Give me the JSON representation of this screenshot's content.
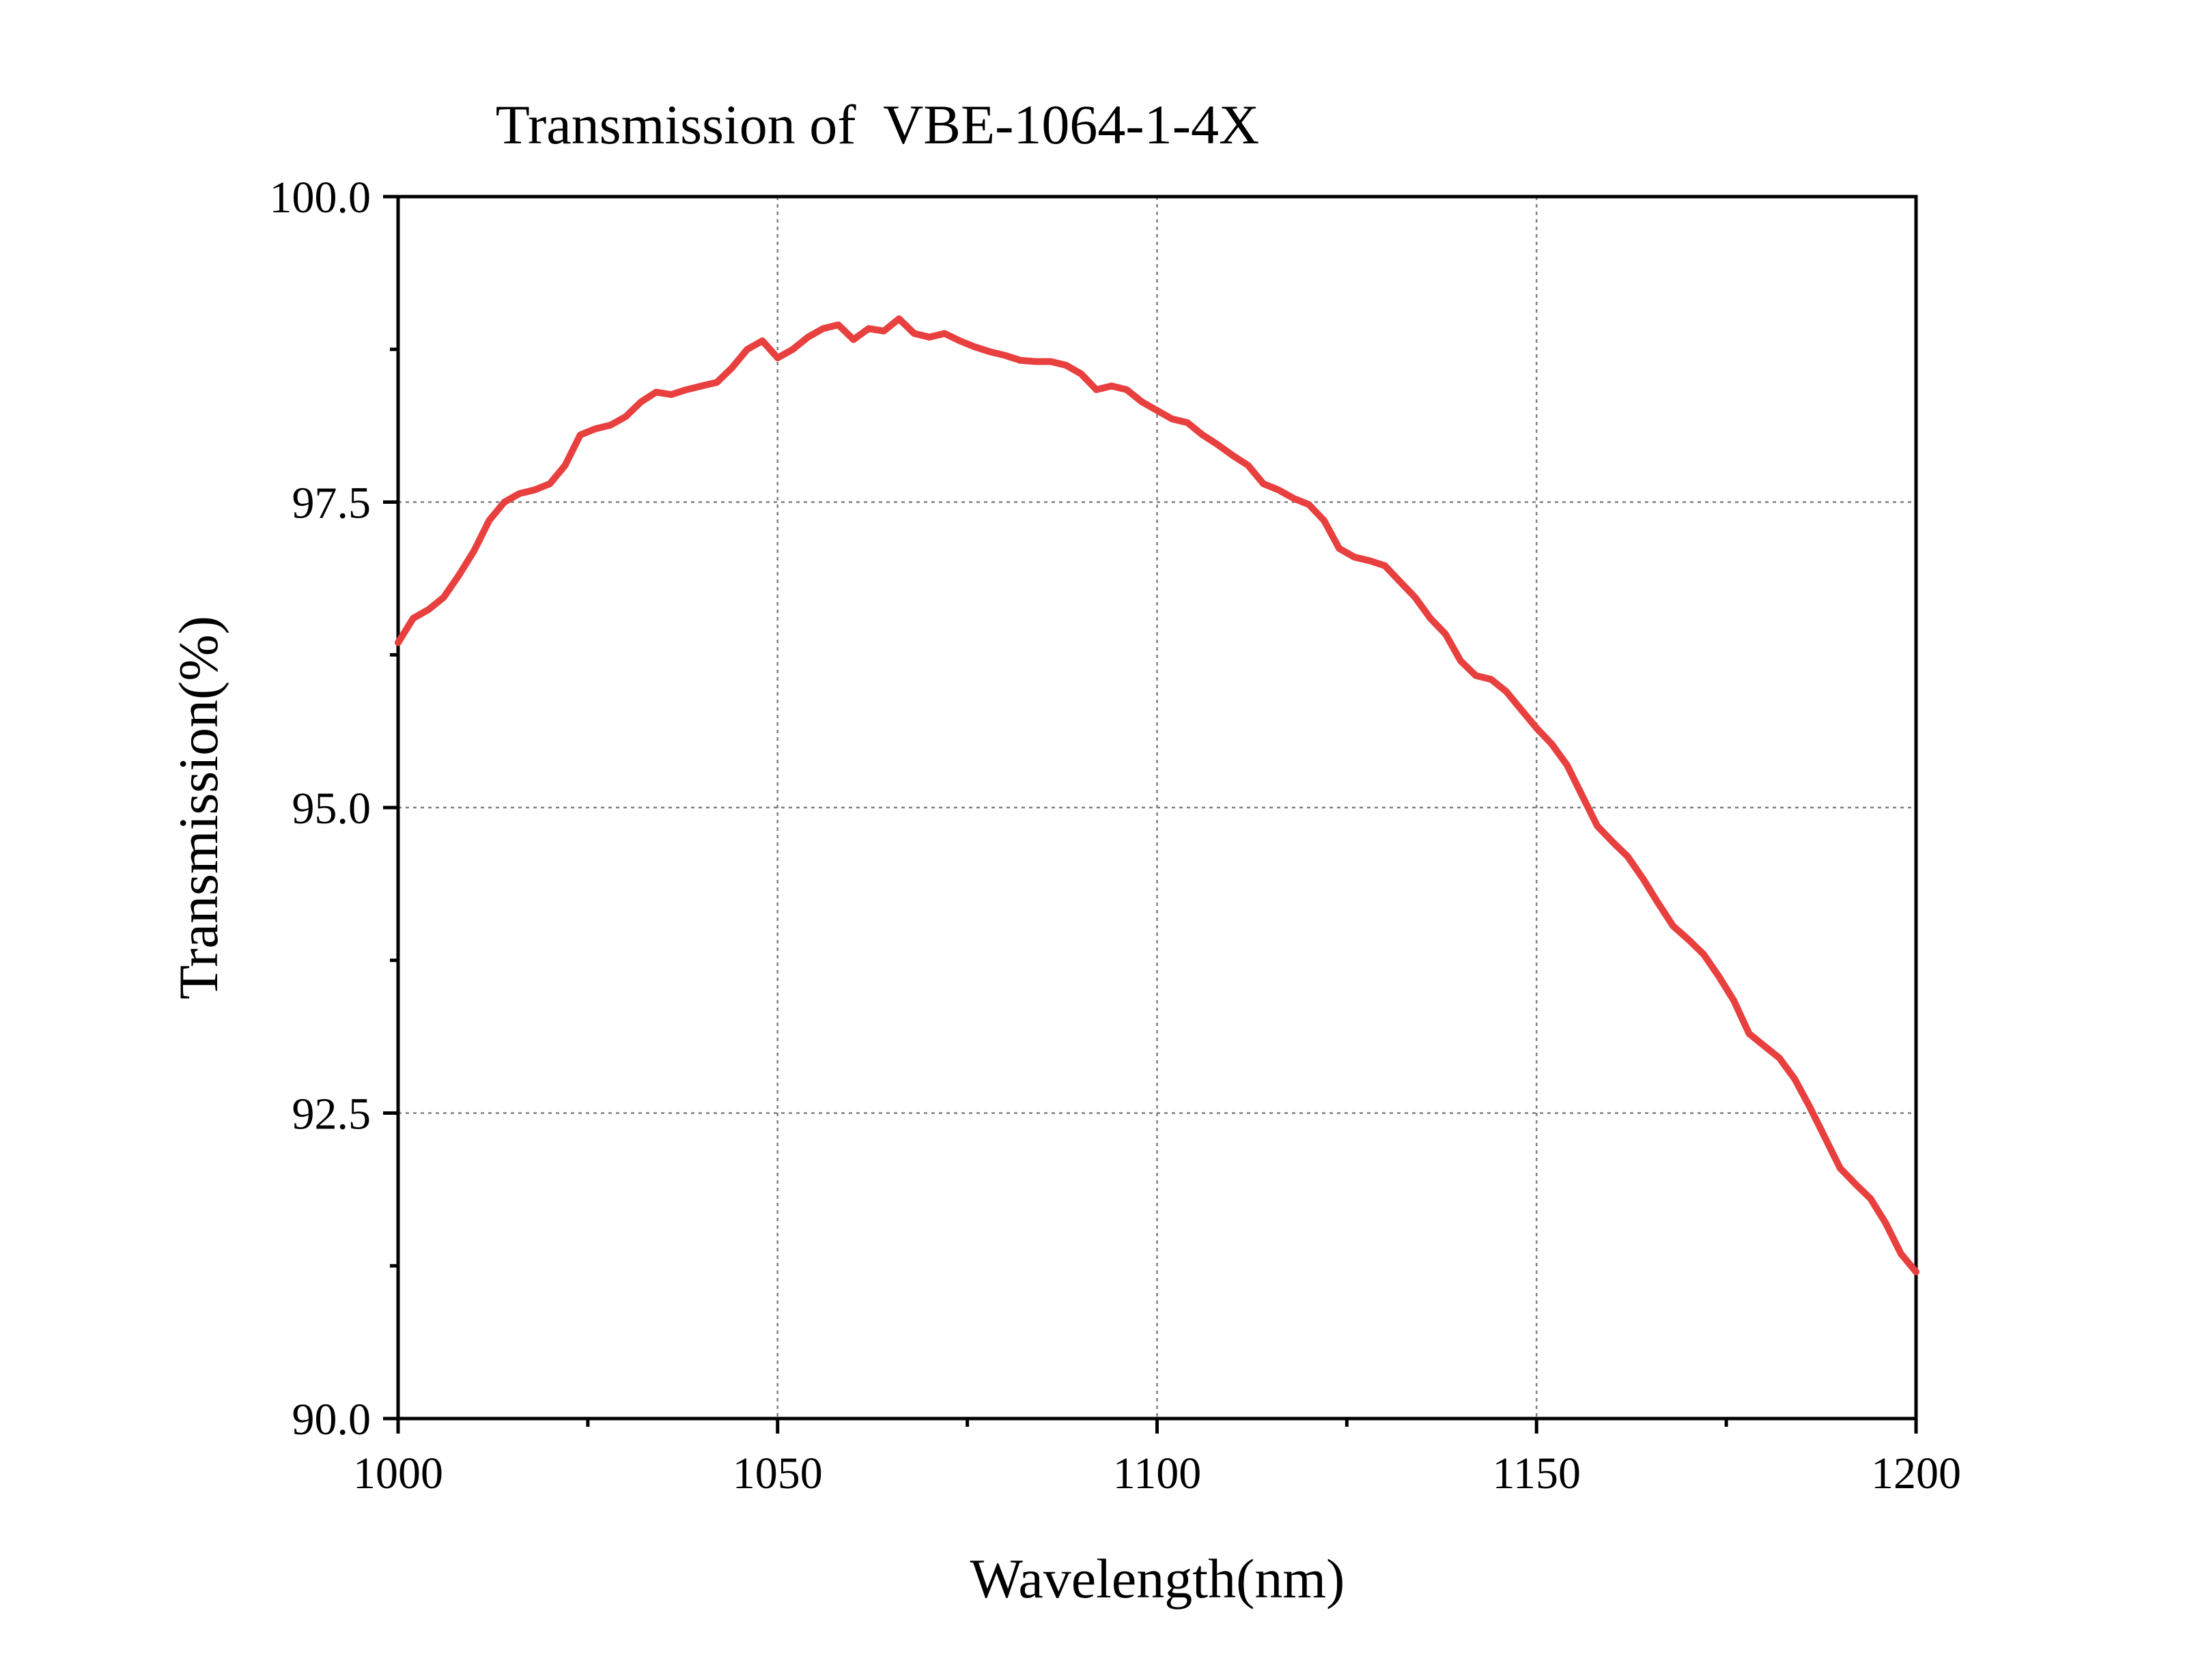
{
  "chart_data": {
    "type": "line",
    "title": "Transmission of  VBE-1064-1-4X",
    "xlabel": "Wavelength(nm)",
    "ylabel": "Transmission(%)",
    "xlim": [
      1000,
      1200
    ],
    "ylim": [
      90.0,
      100.0
    ],
    "x_ticks": [
      1000,
      1050,
      1100,
      1150,
      1200
    ],
    "x_tick_labels": [
      "1000",
      "1050",
      "1100",
      "1150",
      "1200"
    ],
    "y_ticks": [
      90.0,
      92.5,
      95.0,
      97.5,
      100.0
    ],
    "y_tick_labels": [
      "90.0",
      "92.5",
      "95.0",
      "97.5",
      "100.0"
    ],
    "grid": true,
    "legend": "none",
    "color": "#e8403f",
    "series": [
      {
        "x": [
          1000,
          1002,
          1004,
          1006,
          1008,
          1010,
          1012,
          1014,
          1016,
          1018,
          1020,
          1022,
          1024,
          1026,
          1028,
          1030,
          1032,
          1034,
          1036,
          1038,
          1040,
          1042,
          1044,
          1046,
          1048,
          1050,
          1052,
          1054,
          1056,
          1058,
          1060,
          1062,
          1064,
          1066,
          1068,
          1070,
          1072,
          1074,
          1076,
          1078,
          1080,
          1082,
          1084,
          1086,
          1088,
          1090,
          1092,
          1094,
          1096,
          1098,
          1100,
          1102,
          1104,
          1106,
          1108,
          1110,
          1112,
          1114,
          1116,
          1118,
          1120,
          1122,
          1124,
          1126,
          1128,
          1130,
          1132,
          1134,
          1136,
          1138,
          1140,
          1142,
          1144,
          1146,
          1148,
          1150,
          1152,
          1154,
          1156,
          1158,
          1160,
          1162,
          1164,
          1166,
          1168,
          1170,
          1172,
          1174,
          1176,
          1178,
          1180,
          1182,
          1184,
          1186,
          1188,
          1190,
          1192,
          1194,
          1196,
          1198,
          1200
        ],
        "y": [
          96.35,
          96.55,
          96.62,
          96.72,
          96.9,
          97.1,
          97.35,
          97.5,
          97.57,
          97.6,
          97.65,
          97.8,
          98.05,
          98.1,
          98.13,
          98.2,
          98.32,
          98.4,
          98.38,
          98.42,
          98.45,
          98.48,
          98.6,
          98.75,
          98.82,
          98.68,
          98.75,
          98.85,
          98.92,
          98.95,
          98.83,
          98.92,
          98.9,
          99.0,
          98.88,
          98.85,
          98.88,
          98.82,
          98.77,
          98.73,
          98.7,
          98.66,
          98.65,
          98.65,
          98.62,
          98.55,
          98.42,
          98.45,
          98.42,
          98.32,
          98.25,
          98.18,
          98.15,
          98.05,
          97.97,
          97.88,
          97.8,
          97.65,
          97.6,
          97.53,
          97.48,
          97.35,
          97.12,
          97.05,
          97.02,
          96.98,
          96.85,
          96.72,
          96.55,
          96.42,
          96.2,
          96.08,
          96.05,
          95.95,
          95.8,
          95.65,
          95.52,
          95.35,
          95.1,
          94.85,
          94.72,
          94.6,
          94.42,
          94.22,
          94.03,
          93.92,
          93.8,
          93.62,
          93.42,
          93.15,
          93.05,
          92.95,
          92.78,
          92.55,
          92.3,
          92.05,
          91.92,
          91.8,
          91.6,
          91.35,
          91.2
        ]
      }
    ]
  }
}
